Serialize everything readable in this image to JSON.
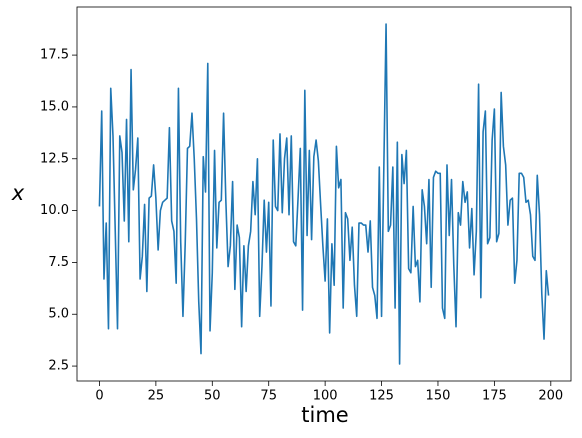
{
  "chart_data": {
    "type": "line",
    "xlabel": "time",
    "ylabel": "x",
    "color": "#1f77b4",
    "x": [
      0,
      1,
      2,
      3,
      4,
      5,
      6,
      7,
      8,
      9,
      10,
      11,
      12,
      13,
      14,
      15,
      16,
      17,
      18,
      19,
      20,
      21,
      22,
      23,
      24,
      25,
      26,
      27,
      28,
      29,
      30,
      31,
      32,
      33,
      34,
      35,
      36,
      37,
      38,
      39,
      40,
      41,
      42,
      43,
      44,
      45,
      46,
      47,
      48,
      49,
      50,
      51,
      52,
      53,
      54,
      55,
      56,
      57,
      58,
      59,
      60,
      61,
      62,
      63,
      64,
      65,
      66,
      67,
      68,
      69,
      70,
      71,
      72,
      73,
      74,
      75,
      76,
      77,
      78,
      79,
      80,
      81,
      82,
      83,
      84,
      85,
      86,
      87,
      88,
      89,
      90,
      91,
      92,
      93,
      94,
      95,
      96,
      97,
      98,
      99,
      100,
      101,
      102,
      103,
      104,
      105,
      106,
      107,
      108,
      109,
      110,
      111,
      112,
      113,
      114,
      115,
      116,
      117,
      118,
      119,
      120,
      121,
      122,
      123,
      124,
      125,
      126,
      127,
      128,
      129,
      130,
      131,
      132,
      133,
      134,
      135,
      136,
      137,
      138,
      139,
      140,
      141,
      142,
      143,
      144,
      145,
      146,
      147,
      148,
      149,
      150,
      151,
      152,
      153,
      154,
      155,
      156,
      157,
      158,
      159,
      160,
      161,
      162,
      163,
      164,
      165,
      166,
      167,
      168,
      169,
      170,
      171,
      172,
      173,
      174,
      175,
      176,
      177,
      178,
      179,
      180,
      181,
      182,
      183,
      184,
      185,
      186,
      187,
      188,
      189,
      190,
      191,
      192,
      193,
      194,
      195,
      196,
      197,
      198,
      199
    ],
    "values": [
      10.2,
      14.8,
      6.7,
      9.4,
      4.3,
      15.9,
      13.6,
      9.0,
      4.3,
      13.6,
      12.8,
      9.5,
      14.4,
      8.5,
      16.8,
      11.0,
      12.0,
      13.5,
      6.7,
      7.8,
      10.3,
      6.1,
      10.6,
      10.7,
      12.2,
      10.6,
      8.1,
      10.0,
      10.4,
      10.5,
      10.6,
      14.0,
      9.5,
      9.0,
      6.5,
      15.9,
      8.5,
      4.9,
      8.4,
      13.0,
      13.1,
      14.7,
      12.5,
      9.6,
      5.6,
      3.1,
      12.6,
      10.9,
      17.1,
      4.2,
      7.0,
      12.9,
      8.2,
      10.4,
      10.5,
      14.7,
      10.5,
      7.3,
      8.3,
      11.4,
      6.2,
      9.3,
      8.7,
      4.4,
      8.3,
      6.1,
      8.3,
      9.0,
      11.4,
      9.8,
      12.5,
      4.9,
      7.3,
      10.5,
      8.0,
      10.4,
      5.4,
      13.4,
      10.2,
      10.0,
      13.7,
      9.9,
      12.5,
      13.5,
      9.8,
      13.6,
      8.5,
      8.3,
      10.6,
      13.0,
      5.2,
      15.8,
      8.8,
      12.9,
      8.6,
      12.6,
      13.4,
      12.4,
      10.3,
      8.3,
      6.6,
      9.6,
      4.1,
      8.4,
      6.4,
      13.1,
      11.1,
      11.5,
      5.3,
      9.9,
      9.6,
      7.6,
      9.2,
      6.4,
      4.9,
      9.4,
      9.4,
      9.3,
      9.3,
      8.0,
      9.5,
      6.3,
      5.9,
      4.8,
      12.1,
      4.9,
      12.0,
      19.0,
      9.0,
      9.3,
      12.1,
      5.3,
      13.3,
      2.6,
      12.7,
      11.3,
      12.9,
      7.2,
      7.0,
      10.2,
      7.3,
      7.6,
      5.6,
      11.0,
      10.2,
      8.4,
      11.5,
      6.3,
      11.6,
      11.9,
      11.8,
      11.8,
      5.3,
      4.8,
      12.2,
      8.8,
      11.5,
      7.4,
      4.4,
      9.9,
      9.3,
      11.4,
      10.4,
      10.9,
      8.2,
      10.1,
      6.9,
      9.0,
      16.1,
      5.8,
      13.8,
      14.8,
      8.4,
      8.7,
      13.4,
      14.9,
      8.5,
      8.9,
      15.7,
      13.1,
      12.2,
      9.3,
      10.5,
      10.6,
      6.5,
      7.6,
      11.8,
      11.8,
      11.6,
      10.4,
      10.5,
      9.8,
      7.8,
      7.6,
      11.7,
      9.8,
      6.0,
      3.8,
      7.1,
      5.9
    ],
    "xlim": [
      -9.95,
      208.95
    ],
    "xticks": [
      0,
      25,
      50,
      75,
      100,
      125,
      150,
      175,
      200
    ],
    "ylim": [
      1.78,
      19.82
    ],
    "yticks": [
      2.5,
      {
        "value": 5,
        "label": "5.0"
      },
      7.5,
      {
        "value": 10,
        "label": "10.0"
      },
      12.5,
      {
        "value": 15,
        "label": "15.0"
      },
      17.5
    ],
    "grid": false
  }
}
